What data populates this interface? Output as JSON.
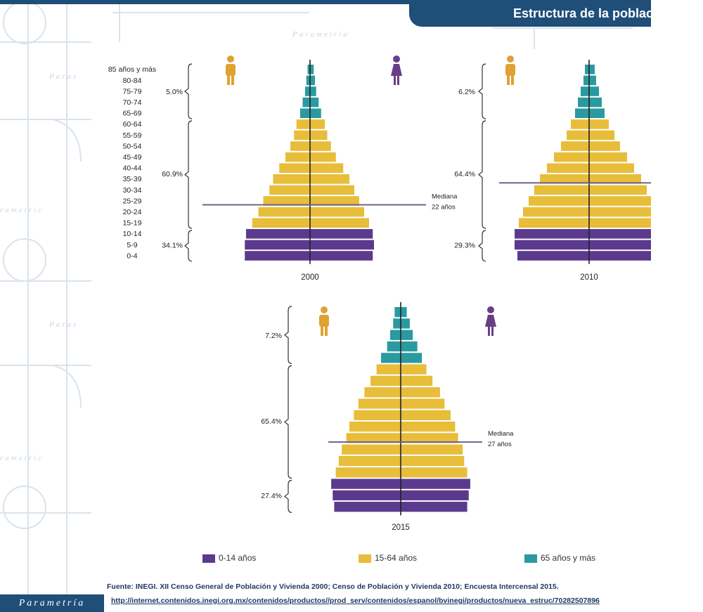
{
  "header": {
    "title": "Estructura de la población"
  },
  "colors": {
    "young": "#5b3a8e",
    "working": "#e8bd3a",
    "old": "#2a9aa0",
    "median_line": "#6a6590",
    "axis": "#222222",
    "male_icon": "#e0a234",
    "female_icon": "#6a3e86"
  },
  "chart_data": [
    {
      "type": "population-pyramid",
      "year_label": "2000",
      "age_groups": [
        "85 años y más",
        "80-84",
        "75-79",
        "70-74",
        "65-69",
        "60-64",
        "55-59",
        "50-54",
        "45-49",
        "40-44",
        "35-39",
        "30-34",
        "25-29",
        "20-24",
        "15-19",
        "10-14",
        "5-9",
        "0-4"
      ],
      "values_male": [
        0.2,
        0.3,
        0.4,
        0.6,
        0.8,
        1.1,
        1.3,
        1.6,
        2.0,
        2.5,
        3.0,
        3.3,
        3.8,
        4.2,
        4.7,
        5.2,
        5.3,
        5.3
      ],
      "values_female": [
        0.3,
        0.4,
        0.5,
        0.7,
        0.9,
        1.2,
        1.4,
        1.7,
        2.1,
        2.7,
        3.2,
        3.6,
        4.0,
        4.4,
        4.8,
        5.1,
        5.2,
        5.1
      ],
      "group_labels": {
        "old": "5.0%",
        "working": "60.9%",
        "young": "34.1%"
      },
      "median": {
        "label": "Mediana",
        "value": "22 años",
        "age_index": 12.85
      }
    },
    {
      "type": "population-pyramid",
      "year_label": "2010",
      "values_male": [
        0.3,
        0.4,
        0.6,
        0.8,
        1.0,
        1.3,
        1.6,
        2.0,
        2.5,
        3.0,
        3.5,
        3.9,
        4.3,
        4.7,
        5.0,
        5.3,
        5.3,
        5.1
      ],
      "values_female": [
        0.4,
        0.5,
        0.7,
        0.9,
        1.1,
        1.4,
        1.8,
        2.2,
        2.7,
        3.2,
        3.7,
        4.1,
        4.5,
        4.9,
        5.1,
        5.3,
        5.3,
        5.2
      ],
      "group_labels": {
        "old": "6.2%",
        "working": "64.4%",
        "young": "29.3%"
      },
      "median": {
        "label": "",
        "value": "",
        "age_index": 10.85
      }
    },
    {
      "type": "population-pyramid",
      "year_label": "2015",
      "values_male": [
        0.4,
        0.5,
        0.7,
        0.9,
        1.3,
        1.6,
        2.0,
        2.4,
        2.8,
        3.1,
        3.4,
        3.6,
        3.9,
        4.1,
        4.3,
        4.6,
        4.5,
        4.4
      ],
      "values_female": [
        0.4,
        0.6,
        0.8,
        1.1,
        1.4,
        1.7,
        2.1,
        2.6,
        2.9,
        3.3,
        3.6,
        3.8,
        4.1,
        4.2,
        4.4,
        4.6,
        4.5,
        4.4
      ],
      "group_labels": {
        "old": "7.2%",
        "working": "65.4%",
        "young": "27.4%"
      },
      "median": {
        "label": "Mediana",
        "value": "27 años",
        "age_index": 11.85
      }
    }
  ],
  "legend": [
    {
      "label": "0-14 años",
      "color": "#5b3a8e"
    },
    {
      "label": "15-64 años",
      "color": "#e8bd3a"
    },
    {
      "label": "65 años y más",
      "color": "#2a9aa0"
    }
  ],
  "footer": {
    "source": "Fuente: INEGI. XII Censo General de Población y Vivienda 2000; Censo de Población y Vivienda 2010; Encuesta Intercensal 2015.",
    "url": "http://internet.contenidos.inegi.org.mx/contenidos/productos//prod_serv/contenidos/espanol/bvinegi/productos/nueva_estruc/70282507896",
    "logo": "Parametría",
    "watermark": [
      "Parametría",
      "Paras",
      "rametríc"
    ]
  }
}
